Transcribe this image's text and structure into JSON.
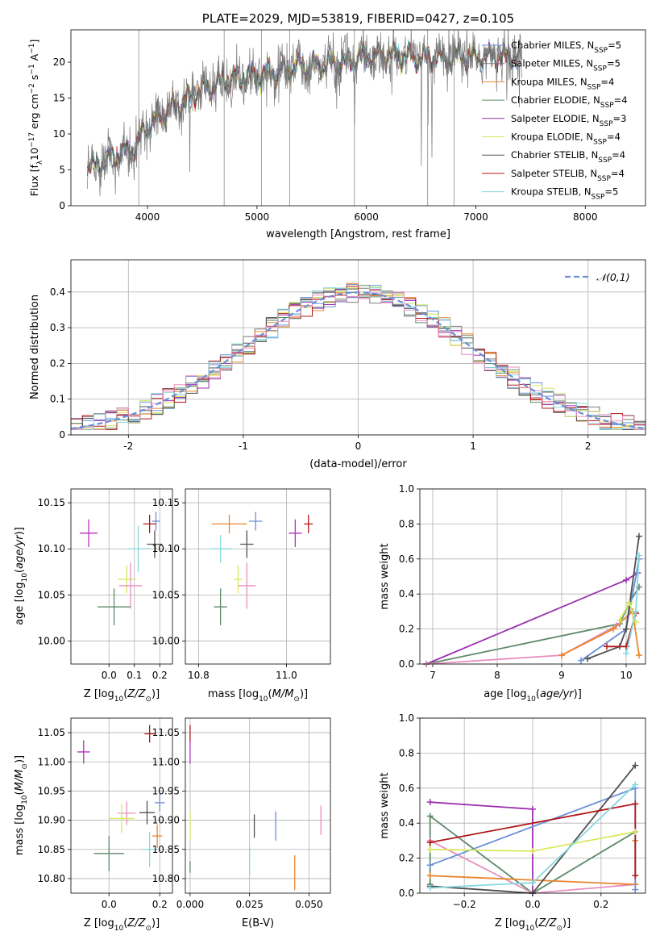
{
  "chart_data": [
    {
      "id": "spectrum",
      "type": "line",
      "title": "PLATE=2029, MJD=53819, FIBERID=0427, z=0.105",
      "xlabel": "wavelength [Angstrom, rest frame]",
      "ylabel": "Flux [fλ10⁻¹⁷ erg cm⁻² s⁻¹ A⁻¹]",
      "xlim": [
        3300,
        8550
      ],
      "ylim": [
        0,
        24.5
      ],
      "xticks": [
        4000,
        5000,
        6000,
        7000,
        8000
      ],
      "yticks": [
        0,
        5,
        10,
        15,
        20
      ],
      "grid": false,
      "legend_position": "top-right",
      "data_x_range": [
        3450,
        7420
      ],
      "continuum_anchor_points": [
        [
          3450,
          5.4
        ],
        [
          3600,
          6.0
        ],
        [
          3700,
          7.0
        ],
        [
          3800,
          7.6
        ],
        [
          3900,
          8.2
        ],
        [
          3950,
          10.0
        ],
        [
          4100,
          12.5
        ],
        [
          4300,
          14.2
        ],
        [
          4500,
          16.2
        ],
        [
          4800,
          17.8
        ],
        [
          5100,
          18.4
        ],
        [
          5400,
          19.4
        ],
        [
          5800,
          19.9
        ],
        [
          6000,
          20.8
        ],
        [
          6200,
          21.0
        ],
        [
          6500,
          20.5
        ],
        [
          7000,
          20.7
        ],
        [
          7420,
          20.7
        ]
      ],
      "series": [
        {
          "name": "Chabrier MILES, N_SSP=5",
          "color": "#6a8fd8"
        },
        {
          "name": "Salpeter MILES, N_SSP=5",
          "color": "#7a7a7a"
        },
        {
          "name": "Kroupa MILES, N_SSP=4",
          "color": "#e8862e"
        },
        {
          "name": "Chabrier ELODIE, N_SSP=4",
          "color": "#5d8a6a"
        },
        {
          "name": "Salpeter ELODIE, N_SSP=3",
          "color": "#9b30b0"
        },
        {
          "name": "Kroupa ELODIE, N_SSP=4",
          "color": "#d9e85c"
        },
        {
          "name": "Chabrier STELIB, N_SSP=4",
          "color": "#505050"
        },
        {
          "name": "Salpeter STELIB, N_SSP=4",
          "color": "#b01818"
        },
        {
          "name": "Kroupa STELIB, N_SSP=5",
          "color": "#86d8e0"
        }
      ]
    },
    {
      "id": "residuals",
      "type": "line",
      "xlabel": "(data-model)/error",
      "ylabel": "Normed distribution",
      "xlim": [
        -2.5,
        2.5
      ],
      "ylim": [
        0,
        0.49
      ],
      "xticks": [
        -2,
        -1,
        0,
        1,
        2
      ],
      "yticks": [
        0.0,
        0.1,
        0.2,
        0.3,
        0.4
      ],
      "grid": true,
      "legend_position": "top-right",
      "reference_label": "𝒩(0,1)",
      "reference_color": "#6a8fd8",
      "bin_width": 0.1,
      "series_colors": [
        "#6a8fd8",
        "#7a7a7a",
        "#e8862e",
        "#5d8a6a",
        "#9b30b0",
        "#d9e85c",
        "#505050",
        "#b01818",
        "#86d8e0",
        "#e88fc0"
      ]
    },
    {
      "id": "age_vs_Z",
      "type": "scatter",
      "xlabel": "Z [log10(Z/Z⊙)]",
      "ylabel": "age [log10(age/yr)]",
      "xlim": [
        -0.15,
        0.25
      ],
      "ylim": [
        9.975,
        10.165
      ],
      "xticks": [
        0.0,
        0.1,
        0.2
      ],
      "xtick_labels": [
        "0.0",
        "0.1",
        "0.2"
      ],
      "yticks": [
        10.0,
        10.05,
        10.1,
        10.15
      ],
      "ytick_labels": [
        "10.00",
        "10.05",
        "10.10",
        "10.15"
      ],
      "grid": true,
      "points": [
        {
          "x": 0.185,
          "xerr": 0.03,
          "y": 10.13,
          "yerr": 0.02,
          "color": "#6a8fd8"
        },
        {
          "x": 0.16,
          "xerr": 0.05,
          "y": 10.127,
          "yerr": 0.02,
          "color": "#b01818"
        },
        {
          "x": 0.18,
          "xerr": 0.06,
          "y": 10.105,
          "yerr": 0.03,
          "color": "#505050"
        },
        {
          "x": 0.115,
          "xerr": 0.09,
          "y": 10.1,
          "yerr": 0.05,
          "color": "#86d8e0"
        },
        {
          "x": -0.08,
          "xerr": 0.07,
          "y": 10.117,
          "yerr": 0.03,
          "color": "#b830c0"
        },
        {
          "x": 0.07,
          "xerr": 0.07,
          "y": 10.067,
          "yerr": 0.03,
          "color": "#d9e85c"
        },
        {
          "x": 0.085,
          "xerr": 0.09,
          "y": 10.06,
          "yerr": 0.05,
          "color": "#e88fc0"
        },
        {
          "x": 0.02,
          "xerr": 0.13,
          "y": 10.037,
          "yerr": 0.04,
          "color": "#5d8a6a"
        }
      ]
    },
    {
      "id": "age_vs_mass",
      "type": "scatter",
      "xlabel": "mass [log10(M/M⊙)]",
      "xlim": [
        10.77,
        11.1
      ],
      "ylim": [
        9.975,
        10.165
      ],
      "xticks": [
        10.8,
        11.0
      ],
      "xtick_labels": [
        "10.8",
        "11.0"
      ],
      "yticks": [
        10.0,
        10.05,
        10.1,
        10.15
      ],
      "ytick_labels": [
        "10.00",
        "10.05",
        "10.10",
        "10.15"
      ],
      "grid": true,
      "points": [
        {
          "x": 10.93,
          "xerr": 0.03,
          "y": 10.13,
          "yerr": 0.02,
          "color": "#6a8fd8"
        },
        {
          "x": 10.87,
          "xerr": 0.08,
          "y": 10.127,
          "yerr": 0.02,
          "color": "#e8862e"
        },
        {
          "x": 11.05,
          "xerr": 0.02,
          "y": 10.127,
          "yerr": 0.02,
          "color": "#b01818"
        },
        {
          "x": 10.91,
          "xerr": 0.03,
          "y": 10.105,
          "yerr": 0.03,
          "color": "#505050"
        },
        {
          "x": 10.85,
          "xerr": 0.05,
          "y": 10.1,
          "yerr": 0.03,
          "color": "#86d8e0"
        },
        {
          "x": 11.02,
          "xerr": 0.03,
          "y": 10.117,
          "yerr": 0.03,
          "color": "#b830c0"
        },
        {
          "x": 10.89,
          "xerr": 0.02,
          "y": 10.067,
          "yerr": 0.03,
          "color": "#d9e85c"
        },
        {
          "x": 10.91,
          "xerr": 0.04,
          "y": 10.06,
          "yerr": 0.05,
          "color": "#e88fc0"
        },
        {
          "x": 10.85,
          "xerr": 0.03,
          "y": 10.037,
          "yerr": 0.04,
          "color": "#5d8a6a"
        }
      ]
    },
    {
      "id": "weight_vs_age",
      "type": "line",
      "xlabel": "age  [log10(age/yr)]",
      "ylabel": "mass weight",
      "xlim": [
        6.8,
        10.3
      ],
      "ylim": [
        0,
        1.0
      ],
      "xticks": [
        7,
        8,
        9,
        10
      ],
      "yticks": [
        0.0,
        0.2,
        0.4,
        0.6,
        0.8,
        1.0
      ],
      "ytick_labels": [
        "0.0",
        "0.2",
        "0.4",
        "0.6",
        "0.8",
        "1.0"
      ],
      "grid": true,
      "series": [
        {
          "color": "#9b30b0",
          "x": [
            6.9,
            10.0,
            10.18
          ],
          "y": [
            0.0,
            0.48,
            0.52
          ]
        },
        {
          "color": "#5d8a6a",
          "x": [
            6.9,
            9.9,
            10.05,
            10.2
          ],
          "y": [
            0.0,
            0.23,
            0.35,
            0.44
          ]
        },
        {
          "color": "#e88fc0",
          "x": [
            6.9,
            9.0,
            9.85,
            10.1
          ],
          "y": [
            0.0,
            0.05,
            0.22,
            0.3
          ]
        },
        {
          "color": "#e8862e",
          "x": [
            9.0,
            9.8,
            10.1,
            10.2
          ],
          "y": [
            0.05,
            0.2,
            0.3,
            0.05
          ]
        },
        {
          "color": "#6a8fd8",
          "x": [
            9.3,
            10.0,
            10.2
          ],
          "y": [
            0.02,
            0.2,
            0.6
          ]
        },
        {
          "color": "#505050",
          "x": [
            9.4,
            9.9,
            10.0,
            10.2
          ],
          "y": [
            0.03,
            0.1,
            0.2,
            0.73
          ]
        },
        {
          "color": "#b01818",
          "x": [
            9.7,
            10.0,
            10.15
          ],
          "y": [
            0.1,
            0.1,
            0.29
          ]
        },
        {
          "color": "#d9e85c",
          "x": [
            9.9,
            10.05,
            10.15
          ],
          "y": [
            0.25,
            0.35,
            0.24
          ]
        },
        {
          "color": "#86d8e0",
          "x": [
            10.0,
            10.15,
            10.2
          ],
          "y": [
            0.06,
            0.3,
            0.62
          ]
        }
      ]
    },
    {
      "id": "mass_vs_Z",
      "type": "scatter",
      "xlabel": "Z [log10(Z/Z⊙)]",
      "ylabel": "mass [log10(M/M⊙)]",
      "xlim": [
        -0.15,
        0.25
      ],
      "ylim": [
        10.775,
        11.075
      ],
      "xticks": [
        0.0,
        0.2
      ],
      "xtick_labels": [
        "0.0",
        "0.2"
      ],
      "yticks": [
        10.8,
        10.85,
        10.9,
        10.95,
        11.0,
        11.05
      ],
      "ytick_labels": [
        "10.80",
        "10.85",
        "10.90",
        "10.95",
        "11.00",
        "11.05"
      ],
      "grid": true,
      "points": [
        {
          "x": 0.16,
          "xerr": 0.04,
          "y": 11.048,
          "yerr": 0.03,
          "color": "#b01818"
        },
        {
          "x": -0.1,
          "xerr": 0.05,
          "y": 11.017,
          "yerr": 0.04,
          "color": "#b830c0"
        },
        {
          "x": 0.2,
          "xerr": 0.04,
          "y": 10.93,
          "yerr": 0.03,
          "color": "#6a8fd8"
        },
        {
          "x": 0.15,
          "xerr": 0.06,
          "y": 10.913,
          "yerr": 0.04,
          "color": "#505050"
        },
        {
          "x": 0.07,
          "xerr": 0.07,
          "y": 10.912,
          "yerr": 0.04,
          "color": "#e88fc0"
        },
        {
          "x": 0.05,
          "xerr": 0.1,
          "y": 10.903,
          "yerr": 0.05,
          "color": "#d9e85c"
        },
        {
          "x": 0.19,
          "xerr": 0.04,
          "y": 10.873,
          "yerr": 0.04,
          "color": "#e8862e"
        },
        {
          "x": 0.16,
          "xerr": 0.06,
          "y": 10.85,
          "yerr": 0.06,
          "color": "#86d8e0"
        },
        {
          "x": 0.0,
          "xerr": 0.12,
          "y": 10.843,
          "yerr": 0.06,
          "color": "#5d8a6a"
        }
      ]
    },
    {
      "id": "mass_vs_ebv",
      "type": "scatter",
      "xlabel": "E(B-V)",
      "xlim": [
        -0.002,
        0.059
      ],
      "ylim": [
        10.775,
        11.075
      ],
      "xticks": [
        0.0,
        0.025,
        0.05
      ],
      "xtick_labels": [
        "0.000",
        "0.025",
        "0.050"
      ],
      "yticks": [
        10.8,
        10.85,
        10.9,
        10.95,
        11.0,
        11.05
      ],
      "ytick_labels": [
        "10.80",
        "10.85",
        "10.90",
        "10.95",
        "11.00",
        "11.05"
      ],
      "grid": true,
      "points": [
        {
          "x": 0.0,
          "y": 11.048,
          "yerr": 0.03,
          "color": "#b01818"
        },
        {
          "x": 0.0,
          "y": 11.017,
          "yerr": 0.04,
          "color": "#b830c0"
        },
        {
          "x": 0.0,
          "y": 10.89,
          "yerr": 0.05,
          "color": "#d9e85c"
        },
        {
          "x": 0.0,
          "y": 10.82,
          "yerr": 0.02,
          "color": "#5d8a6a"
        },
        {
          "x": 0.036,
          "y": 10.89,
          "yerr": 0.05,
          "color": "#6a8fd8"
        },
        {
          "x": 0.027,
          "y": 10.89,
          "yerr": 0.04,
          "color": "#505050"
        },
        {
          "x": 0.025,
          "y": 10.83,
          "yerr": 0.05,
          "color": "#86d8e0"
        },
        {
          "x": 0.044,
          "y": 10.81,
          "yerr": 0.06,
          "color": "#e8862e"
        },
        {
          "x": 0.055,
          "y": 10.9,
          "yerr": 0.05,
          "color": "#e88fc0"
        }
      ]
    },
    {
      "id": "weight_vs_Z",
      "type": "line",
      "xlabel": "Z [log10(Z/Z⊙)]",
      "ylabel": "mass weight",
      "xlim": [
        -0.33,
        0.33
      ],
      "ylim": [
        0,
        1.0
      ],
      "xticks": [
        -0.2,
        0.0,
        0.2
      ],
      "xtick_labels": [
        "−0.2",
        "0.0",
        "0.2"
      ],
      "yticks": [
        0.0,
        0.2,
        0.4,
        0.6,
        0.8,
        1.0
      ],
      "ytick_labels": [
        "0.0",
        "0.2",
        "0.4",
        "0.6",
        "0.8",
        "1.0"
      ],
      "grid": true,
      "series": [
        {
          "color": "#9b30b0",
          "x": [
            -0.3,
            0.0,
            0.0
          ],
          "y": [
            0.52,
            0.48,
            0.0
          ]
        },
        {
          "color": "#5d8a6a",
          "x": [
            -0.3,
            -0.3,
            0.0,
            0.3
          ],
          "y": [
            0.05,
            0.44,
            0.0,
            0.35
          ]
        },
        {
          "color": "#e88fc0",
          "x": [
            -0.3,
            0.0,
            0.3
          ],
          "y": [
            0.3,
            0.0,
            0.05
          ]
        },
        {
          "color": "#e8862e",
          "x": [
            -0.3,
            0.3,
            0.3
          ],
          "y": [
            0.1,
            0.05,
            0.3
          ]
        },
        {
          "color": "#6a8fd8",
          "x": [
            -0.3,
            0.3,
            0.3
          ],
          "y": [
            0.16,
            0.6,
            0.02
          ]
        },
        {
          "color": "#505050",
          "x": [
            -0.3,
            0.0,
            0.3
          ],
          "y": [
            0.04,
            0.0,
            0.73
          ]
        },
        {
          "color": "#b01818",
          "x": [
            -0.3,
            0.3,
            0.3
          ],
          "y": [
            0.29,
            0.51,
            0.1
          ]
        },
        {
          "color": "#d9e85c",
          "x": [
            -0.3,
            0.0,
            0.3
          ],
          "y": [
            0.25,
            0.24,
            0.35
          ]
        },
        {
          "color": "#86d8e0",
          "x": [
            -0.3,
            0.0,
            0.3
          ],
          "y": [
            0.03,
            0.06,
            0.62
          ]
        }
      ]
    }
  ]
}
